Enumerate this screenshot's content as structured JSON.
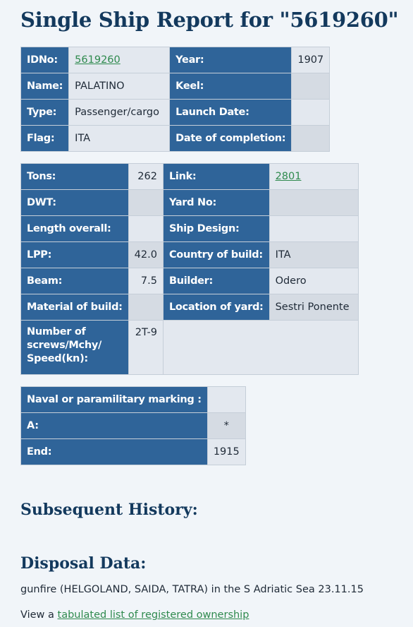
{
  "page": {
    "title": "Single Ship Report for \"5619260\""
  },
  "table1": {
    "idno_label": "IDNo:",
    "idno_value": "5619260",
    "year_label": "Year:",
    "year_value": "1907",
    "name_label": "Name:",
    "name_value": "PALATINO",
    "keel_label": "Keel:",
    "keel_value": "",
    "type_label": "Type:",
    "type_value": "Passenger/cargo",
    "launch_label": "Launch Date:",
    "launch_value": "",
    "flag_label": "Flag:",
    "flag_value": "ITA",
    "completion_label": "Date of completion:",
    "completion_value": ""
  },
  "table2": {
    "tons_label": "Tons:",
    "tons_value": "262",
    "link_label": "Link:",
    "link_value": "2801",
    "dwt_label": "DWT:",
    "dwt_value": "",
    "yard_label": "Yard No:",
    "yard_value": "",
    "length_label": "Length overall:",
    "length_value": "",
    "design_label": "Ship Design:",
    "design_value": "",
    "lpp_label": "LPP:",
    "lpp_value": "42.0",
    "country_label": "Country of build:",
    "country_value": "ITA",
    "beam_label": "Beam:",
    "beam_value": "7.5",
    "builder_label": "Builder:",
    "builder_value": "Odero",
    "material_label": "Material of build:",
    "material_value": "",
    "location_label": "Location of yard:",
    "location_value": "Sestri Ponente",
    "screws_label": "Number of screws/Mchy/ Speed(kn):",
    "screws_value": "2T-9"
  },
  "table3": {
    "naval_label": "Naval or paramilitary marking :",
    "naval_value": "",
    "a_label": "A:",
    "a_value": "*",
    "end_label": "End:",
    "end_value": "1915"
  },
  "sections": {
    "subsequent_title": "Subsequent History:",
    "disposal_title": "Disposal Data:",
    "disposal_text": "gunfire (HELGOLAND, SAIDA, TATRA) in the S Adriatic Sea 23.11.15",
    "view_prefix": "View a ",
    "view_link": "tabulated list of registered ownership"
  },
  "colors": {
    "label_bg": "#2f6499",
    "value_bg": "#e3e8ef",
    "heading": "#13395d",
    "link": "#2f8a4e"
  }
}
